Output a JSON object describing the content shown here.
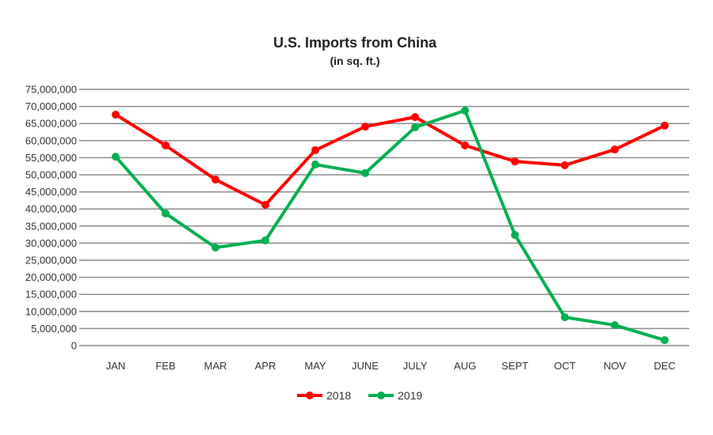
{
  "chart_data": {
    "type": "line",
    "title": "U.S. Imports from China",
    "subtitle": "(in sq. ft.)",
    "xlabel": "",
    "ylabel": "",
    "categories": [
      "JAN",
      "FEB",
      "MAR",
      "APR",
      "MAY",
      "JUNE",
      "JULY",
      "AUG",
      "SEPT",
      "OCT",
      "NOV",
      "DEC"
    ],
    "ylim": [
      0,
      75000000
    ],
    "ytick_step": 5000000,
    "grid": true,
    "legend_position": "bottom",
    "series": [
      {
        "name": "2018",
        "color": "#ff0000",
        "values": [
          67600000,
          58600000,
          48600000,
          41200000,
          57200000,
          64100000,
          66900000,
          58600000,
          53900000,
          52800000,
          57400000,
          64400000
        ]
      },
      {
        "name": "2019",
        "color": "#00b050",
        "values": [
          55300000,
          38700000,
          28700000,
          30800000,
          53000000,
          50500000,
          63900000,
          68800000,
          32400000,
          8300000,
          6000000,
          1600000
        ]
      }
    ]
  }
}
